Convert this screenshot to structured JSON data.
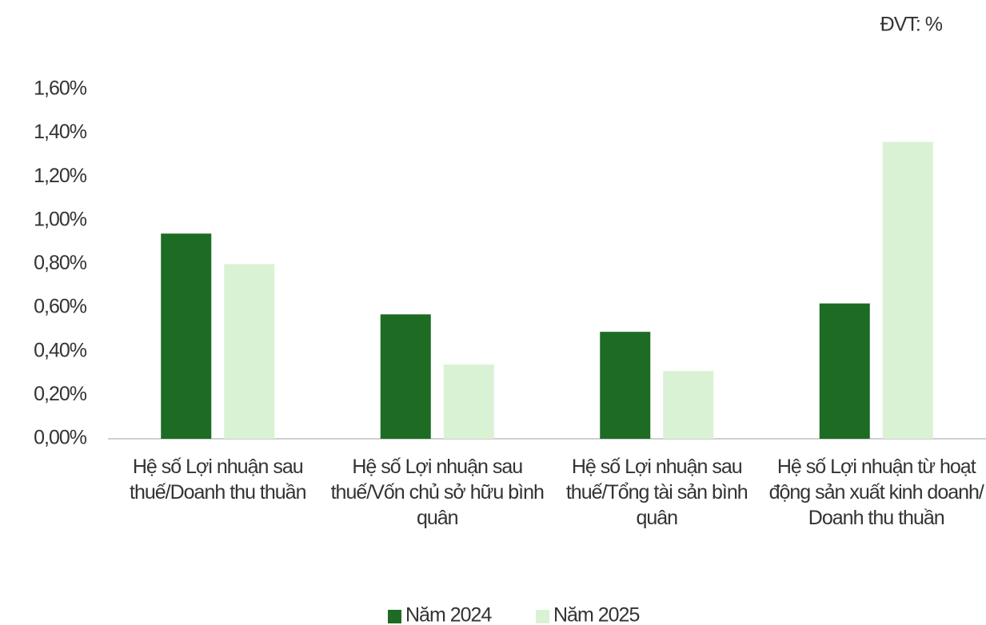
{
  "chart_data": {
    "type": "bar",
    "unit_label": "ĐVT: %",
    "categories": [
      "Hệ số Lợi nhuận sau thuế/Doanh thu thuần",
      "Hệ số Lợi nhuận sau thuế/Vốn chủ sở hữu bình quân",
      "Hệ số Lợi nhuận sau thuế/Tổng tài sản bình quân",
      "Hệ số Lợi nhuận từ hoạt động sản xuất kinh doanh/ Doanh thu thuần"
    ],
    "series": [
      {
        "name": "Năm 2024",
        "color": "#1e6b24",
        "values": [
          0.94,
          0.57,
          0.49,
          0.62
        ]
      },
      {
        "name": "Năm 2025",
        "color": "#d9f2d4",
        "values": [
          0.8,
          0.34,
          0.31,
          1.36
        ]
      }
    ],
    "ylim": [
      0,
      1.6
    ],
    "yticks": [
      {
        "value": 0,
        "label": "0,00%"
      },
      {
        "value": 0.2,
        "label": "0,20%"
      },
      {
        "value": 0.4,
        "label": "0,40%"
      },
      {
        "value": 0.6,
        "label": "0,60%"
      },
      {
        "value": 0.8,
        "label": "0,80%"
      },
      {
        "value": 1.0,
        "label": "1,00%"
      },
      {
        "value": 1.2,
        "label": "1,20%"
      },
      {
        "value": 1.4,
        "label": "1,40%"
      },
      {
        "value": 1.6,
        "label": "1,60%"
      }
    ],
    "legend": "bottom"
  }
}
